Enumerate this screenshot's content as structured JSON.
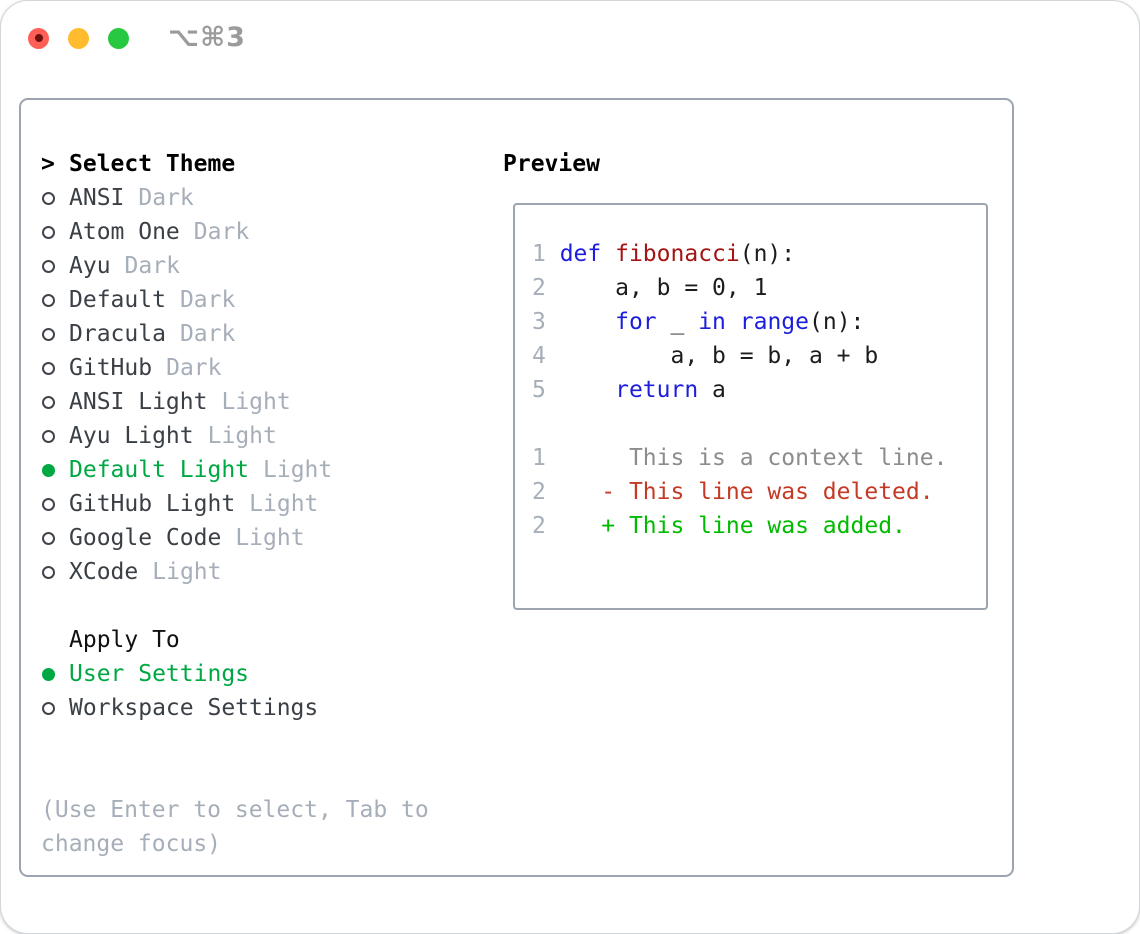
{
  "window": {
    "title": "⌥⌘3",
    "controls": {
      "close": "close-button",
      "minimize": "minimize-button",
      "zoom": "zoom-button"
    }
  },
  "colors": {
    "selected_green": "#00a843",
    "keyword_blue": "#1d1ddd",
    "function_red": "#a31414",
    "deleted_red": "#c43a24",
    "added_green": "#00bb00",
    "dim_gray": "#a6aeb9",
    "item_gray": "#3b4046",
    "traffic_red": "#ff5f57",
    "traffic_yellow": "#febc2e",
    "traffic_green": "#28c840"
  },
  "panel": {
    "header_prefix": ">",
    "header": "Select Theme",
    "items": [
      {
        "name": "ANSI",
        "variant": "Dark",
        "state": "unselected"
      },
      {
        "name": "Atom One",
        "variant": "Dark",
        "state": "unselected"
      },
      {
        "name": "Ayu",
        "variant": "Dark",
        "state": "unselected"
      },
      {
        "name": "Default",
        "variant": "Dark",
        "state": "unselected"
      },
      {
        "name": "Dracula",
        "variant": "Dark",
        "state": "unselected"
      },
      {
        "name": "GitHub",
        "variant": "Dark",
        "state": "unselected"
      },
      {
        "name": "ANSI Light",
        "variant": "Light",
        "state": "unselected"
      },
      {
        "name": "Ayu Light",
        "variant": "Light",
        "state": "unselected"
      },
      {
        "name": "Default Light",
        "variant": "Light",
        "state": "selected"
      },
      {
        "name": "GitHub Light",
        "variant": "Light",
        "state": "unselected"
      },
      {
        "name": "Google Code",
        "variant": "Light",
        "state": "unselected"
      },
      {
        "name": "XCode",
        "variant": "Light",
        "state": "unselected"
      }
    ],
    "apply_to": {
      "header": "Apply To",
      "options": [
        {
          "name": "User Settings",
          "state": "selected"
        },
        {
          "name": "Workspace Settings",
          "state": "unselected"
        }
      ]
    },
    "hint_line1": "(Use Enter to select, Tab to",
    "hint_line2": "change focus)"
  },
  "preview": {
    "header": "Preview",
    "lines": [
      [
        {
          "t": "1 ",
          "c": "num"
        },
        {
          "t": "def",
          "c": "kw"
        },
        {
          "t": " ",
          "c": "pl"
        },
        {
          "t": "fibonacci",
          "c": "fn"
        },
        {
          "t": "(n):",
          "c": "pl"
        }
      ],
      [
        {
          "t": "2 ",
          "c": "num"
        },
        {
          "t": "    a, b = 0, 1",
          "c": "pl"
        }
      ],
      [
        {
          "t": "3 ",
          "c": "num"
        },
        {
          "t": "    ",
          "c": "pl"
        },
        {
          "t": "for",
          "c": "kw"
        },
        {
          "t": " _ ",
          "c": "pl"
        },
        {
          "t": "in",
          "c": "kw"
        },
        {
          "t": " ",
          "c": "pl"
        },
        {
          "t": "range",
          "c": "kw"
        },
        {
          "t": "(n):",
          "c": "pl"
        }
      ],
      [
        {
          "t": "4 ",
          "c": "num"
        },
        {
          "t": "        a, b = b, a + b",
          "c": "pl"
        }
      ],
      [
        {
          "t": "5 ",
          "c": "num"
        },
        {
          "t": "    ",
          "c": "pl"
        },
        {
          "t": "return",
          "c": "kw"
        },
        {
          "t": " a",
          "c": "pl"
        }
      ],
      [],
      [
        {
          "t": "1",
          "c": "num"
        },
        {
          "t": "      This is a context line.",
          "c": "ctx"
        }
      ],
      [
        {
          "t": "2",
          "c": "num"
        },
        {
          "t": "    ",
          "c": "pl"
        },
        {
          "t": "- This line was deleted.",
          "c": "del"
        }
      ],
      [
        {
          "t": "2",
          "c": "num"
        },
        {
          "t": "    ",
          "c": "pl"
        },
        {
          "t": "+ This line was added.",
          "c": "add"
        }
      ]
    ]
  }
}
